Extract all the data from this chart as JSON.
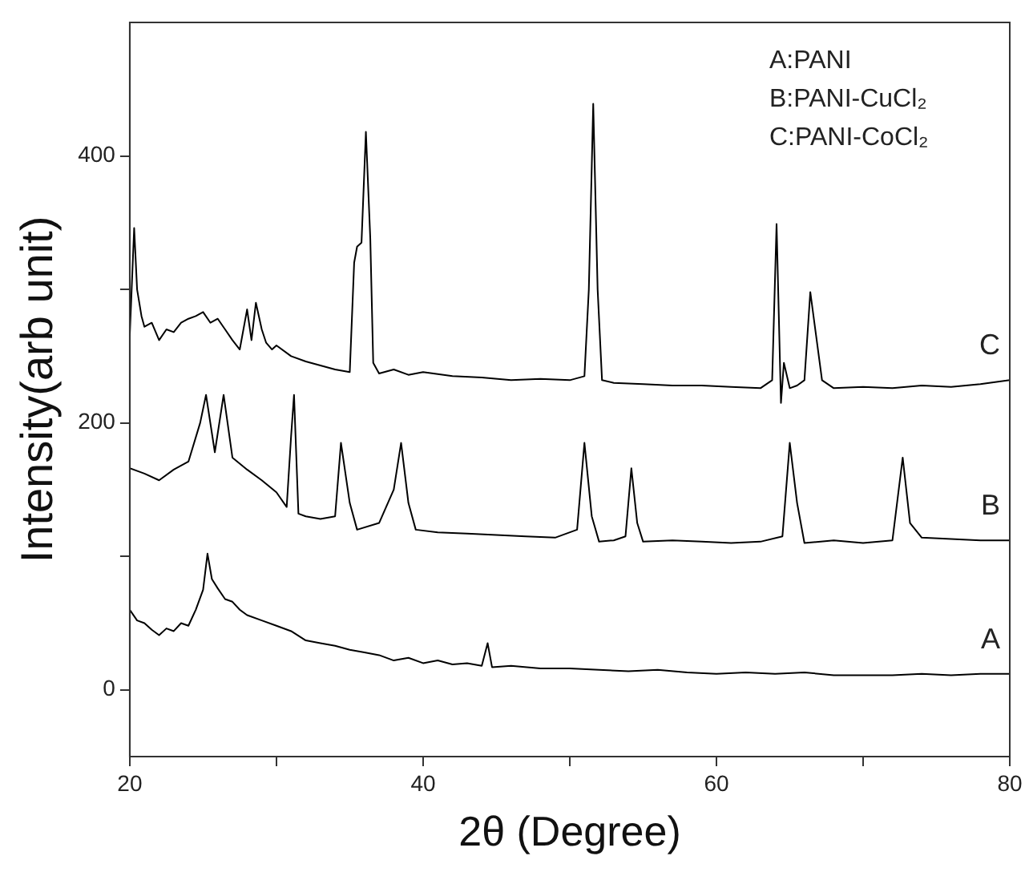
{
  "chart_data": {
    "type": "line",
    "xlabel": "2θ (Degree)",
    "ylabel": "Intensity(arb unit)",
    "annotations": [
      "A:PANI",
      "B:PANI-CuCl₂",
      "C:PANI-CoCl₂"
    ],
    "xlim": [
      20,
      80
    ],
    "xticks": [
      20,
      {
        "value": 30,
        "label": null
      },
      40,
      {
        "value": 50,
        "label": null
      },
      60,
      {
        "value": 70,
        "label": null
      },
      80
    ],
    "ylim": [
      -50,
      500
    ],
    "yticks": [
      0,
      {
        "value": 100,
        "label": null
      },
      200,
      {
        "value": 300,
        "label": null
      },
      400
    ],
    "grid": false,
    "legend": false,
    "marker": "none",
    "line_style": "solid",
    "series": [
      {
        "name": "C",
        "color": "#000000",
        "x": [
          20,
          20.3,
          20.5,
          20.8,
          21,
          21.5,
          22,
          22.5,
          23,
          23.5,
          24,
          24.5,
          25,
          25.5,
          26,
          26.5,
          27,
          27.5,
          28,
          28.3,
          28.6,
          29,
          29.3,
          29.7,
          30,
          31,
          32,
          33,
          34,
          35,
          35.3,
          35.5,
          35.8,
          36.1,
          36.4,
          36.6,
          37,
          38,
          39,
          40,
          42,
          44,
          46,
          48,
          50,
          51,
          51.3,
          51.6,
          51.9,
          52.2,
          53,
          55,
          57,
          59,
          61,
          63,
          63.8,
          64.1,
          64.4,
          64.6,
          65,
          65.5,
          66,
          66.4,
          66.8,
          67.2,
          68,
          70,
          72,
          74,
          76,
          78,
          80
        ],
        "values": [
          265,
          346,
          300,
          280,
          272,
          275,
          262,
          270,
          268,
          275,
          278,
          280,
          283,
          275,
          278,
          270,
          262,
          255,
          285,
          262,
          290,
          270,
          260,
          255,
          258,
          250,
          246,
          243,
          240,
          238,
          320,
          332,
          335,
          418,
          338,
          245,
          237,
          240,
          236,
          238,
          235,
          234,
          232,
          233,
          232,
          235,
          300,
          439,
          300,
          232,
          230,
          229,
          228,
          228,
          227,
          226,
          232,
          349,
          215,
          245,
          226,
          228,
          232,
          298,
          265,
          232,
          226,
          227,
          226,
          228,
          227,
          229,
          232
        ]
      },
      {
        "name": "B",
        "color": "#000000",
        "x": [
          20,
          21,
          22,
          23,
          24,
          24.8,
          25.2,
          25.8,
          26.4,
          27,
          28,
          29,
          30,
          30.7,
          31,
          31.2,
          31.5,
          32,
          33,
          34,
          34.4,
          35,
          35.5,
          37,
          38,
          38.5,
          39,
          39.5,
          41,
          43,
          45,
          47,
          49,
          50.5,
          51,
          51.5,
          52,
          53,
          53.8,
          54.2,
          54.6,
          55,
          57,
          59,
          61,
          63,
          64.5,
          65,
          65.5,
          66,
          68,
          70,
          72,
          72.7,
          73.2,
          74,
          76,
          78,
          80
        ],
        "values": [
          166,
          162,
          157,
          165,
          171,
          200,
          221,
          178,
          221,
          174,
          165,
          157,
          148,
          137,
          190,
          221,
          132,
          130,
          128,
          130,
          185,
          140,
          120,
          125,
          150,
          185,
          140,
          120,
          118,
          117,
          116,
          115,
          114,
          120,
          185,
          130,
          111,
          112,
          115,
          166,
          125,
          111,
          112,
          111,
          110,
          111,
          115,
          185,
          140,
          110,
          112,
          110,
          112,
          174,
          125,
          114,
          113,
          112,
          112
        ]
      },
      {
        "name": "A",
        "color": "#000000",
        "x": [
          20,
          20.5,
          21,
          21.5,
          22,
          22.5,
          23,
          23.5,
          24,
          24.5,
          25,
          25.3,
          25.6,
          26,
          26.5,
          27,
          27.5,
          28,
          29,
          30,
          31,
          32,
          33,
          34,
          35,
          36,
          37,
          38,
          39,
          40,
          41,
          42,
          43,
          44,
          44.4,
          44.7,
          46,
          48,
          50,
          52,
          54,
          56,
          58,
          60,
          62,
          64,
          66,
          68,
          70,
          72,
          74,
          76,
          78,
          80
        ],
        "values": [
          60,
          52,
          50,
          45,
          41,
          46,
          44,
          50,
          48,
          60,
          75,
          102,
          83,
          76,
          68,
          66,
          60,
          56,
          52,
          48,
          44,
          37,
          35,
          33,
          30,
          28,
          26,
          22,
          24,
          20,
          22,
          19,
          20,
          18,
          35,
          17,
          18,
          16,
          16,
          15,
          14,
          15,
          13,
          12,
          13,
          12,
          13,
          11,
          11,
          11,
          12,
          11,
          12,
          12
        ]
      }
    ]
  }
}
